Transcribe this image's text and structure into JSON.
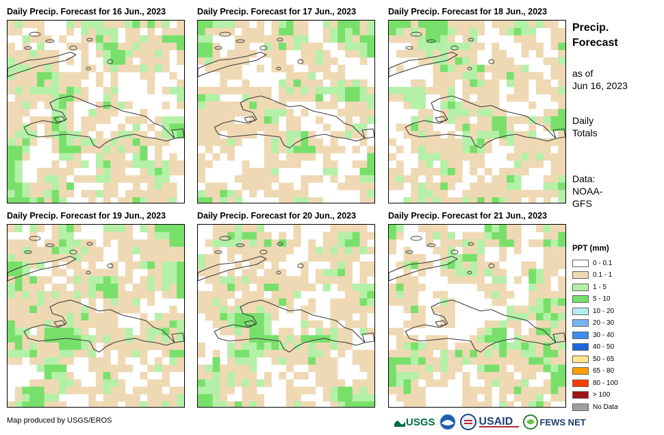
{
  "panels": [
    {
      "title": "Daily Precip. Forecast for 16 Jun., 2023",
      "seed": 11
    },
    {
      "title": "Daily Precip. Forecast for 17 Jun., 2023",
      "seed": 23
    },
    {
      "title": "Daily Precip. Forecast for 18 Jun., 2023",
      "seed": 37
    },
    {
      "title": "Daily Precip. Forecast for 19 Jun., 2023",
      "seed": 41
    },
    {
      "title": "Daily Precip. Forecast for 20 Jun., 2023",
      "seed": 53
    },
    {
      "title": "Daily Precip. Forecast for 21 Jun., 2023",
      "seed": 67
    }
  ],
  "sidebar": {
    "title_line1": "Precip.",
    "title_line2": "Forecast",
    "asof_line1": "as of",
    "asof_line2": "Jun 16, 2023",
    "totals_line1": "Daily",
    "totals_line2": "Totals",
    "data_line1": "Data:",
    "data_line2": "NOAA-",
    "data_line3": "GFS"
  },
  "legend": {
    "title": "PPT (mm)",
    "items": [
      {
        "label": "0 - 0.1",
        "color": "#ffffff"
      },
      {
        "label": "0.1 - 1",
        "color": "#efd9b4"
      },
      {
        "label": "1 - 5",
        "color": "#b4f0a8"
      },
      {
        "label": "5 - 10",
        "color": "#78e06a"
      },
      {
        "label": "10 - 20",
        "color": "#b4ecf0"
      },
      {
        "label": "20 - 30",
        "color": "#78b4f0"
      },
      {
        "label": "30 - 40",
        "color": "#3c8cf0"
      },
      {
        "label": "40 - 50",
        "color": "#1e64dc"
      },
      {
        "label": "50 - 65",
        "color": "#ffe68c"
      },
      {
        "label": "65 - 80",
        "color": "#ffa000"
      },
      {
        "label": "80 - 100",
        "color": "#ff3c00"
      },
      {
        "label": "> 100",
        "color": "#a01414"
      },
      {
        "label": "No Data",
        "color": "#a0a0a0"
      }
    ]
  },
  "credit": "Map produced by USGS/EROS",
  "logos": {
    "usgs": "USGS",
    "usaid": "USAID",
    "fews": "FEWS NET"
  },
  "colors": {
    "no_rain": "#ffffff",
    "light": "#efd9b4",
    "moderate": "#b4f0a8",
    "heavy": "#78e06a"
  }
}
